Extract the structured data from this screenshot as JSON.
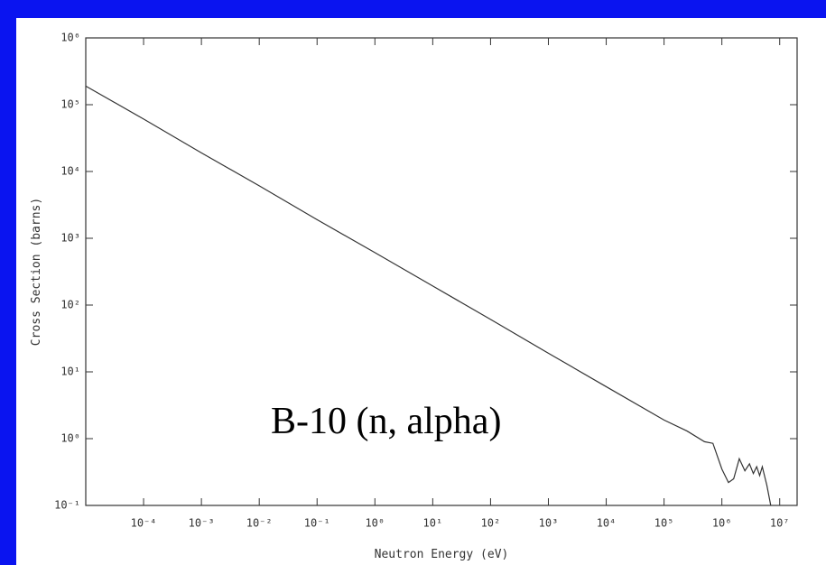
{
  "chart_data": {
    "type": "line",
    "annotation": "B-10 (n, alpha)",
    "x_label": "Neutron Energy (eV)",
    "y_label": "Cross Section (barns)",
    "x_scale": "log",
    "y_scale": "log",
    "xlim": [
      1e-05,
      20000000
    ],
    "ylim": [
      0.1,
      1000000
    ],
    "xticks": [
      {
        "value": 0.0001,
        "label": "10⁻⁴"
      },
      {
        "value": 0.001,
        "label": "10⁻³"
      },
      {
        "value": 0.01,
        "label": "10⁻²"
      },
      {
        "value": 0.1,
        "label": "10⁻¹"
      },
      {
        "value": 1,
        "label": "10⁰"
      },
      {
        "value": 10,
        "label": "10¹"
      },
      {
        "value": 100,
        "label": "10²"
      },
      {
        "value": 1000,
        "label": "10³"
      },
      {
        "value": 10000,
        "label": "10⁴"
      },
      {
        "value": 100000,
        "label": "10⁵"
      },
      {
        "value": 1000000,
        "label": "10⁶"
      },
      {
        "value": 10000000,
        "label": "10⁷"
      }
    ],
    "yticks": [
      {
        "value": 0.1,
        "label": "10⁻¹"
      },
      {
        "value": 1,
        "label": "10⁰"
      },
      {
        "value": 10,
        "label": "10¹"
      },
      {
        "value": 100,
        "label": "10²"
      },
      {
        "value": 1000,
        "label": "10³"
      },
      {
        "value": 10000,
        "label": "10⁴"
      },
      {
        "value": 100000,
        "label": "10⁵"
      },
      {
        "value": 1000000,
        "label": "10⁶"
      }
    ],
    "color": "#333333",
    "x": [
      1e-05,
      0.0001,
      0.001,
      0.01,
      0.1,
      1,
      10,
      100,
      1000,
      10000,
      100000,
      250000,
      500000,
      700000,
      1000000,
      1300000,
      1600000,
      2000000,
      2500000,
      3000000,
      3500000,
      4000000,
      4500000,
      5000000,
      6000000,
      7000000
    ],
    "values": [
      190000,
      61000,
      19000,
      6100,
      1900,
      610,
      193,
      61,
      19,
      6,
      1.9,
      1.3,
      0.9,
      0.85,
      0.35,
      0.22,
      0.25,
      0.5,
      0.33,
      0.42,
      0.3,
      0.38,
      0.28,
      0.38,
      0.2,
      0.1
    ]
  }
}
